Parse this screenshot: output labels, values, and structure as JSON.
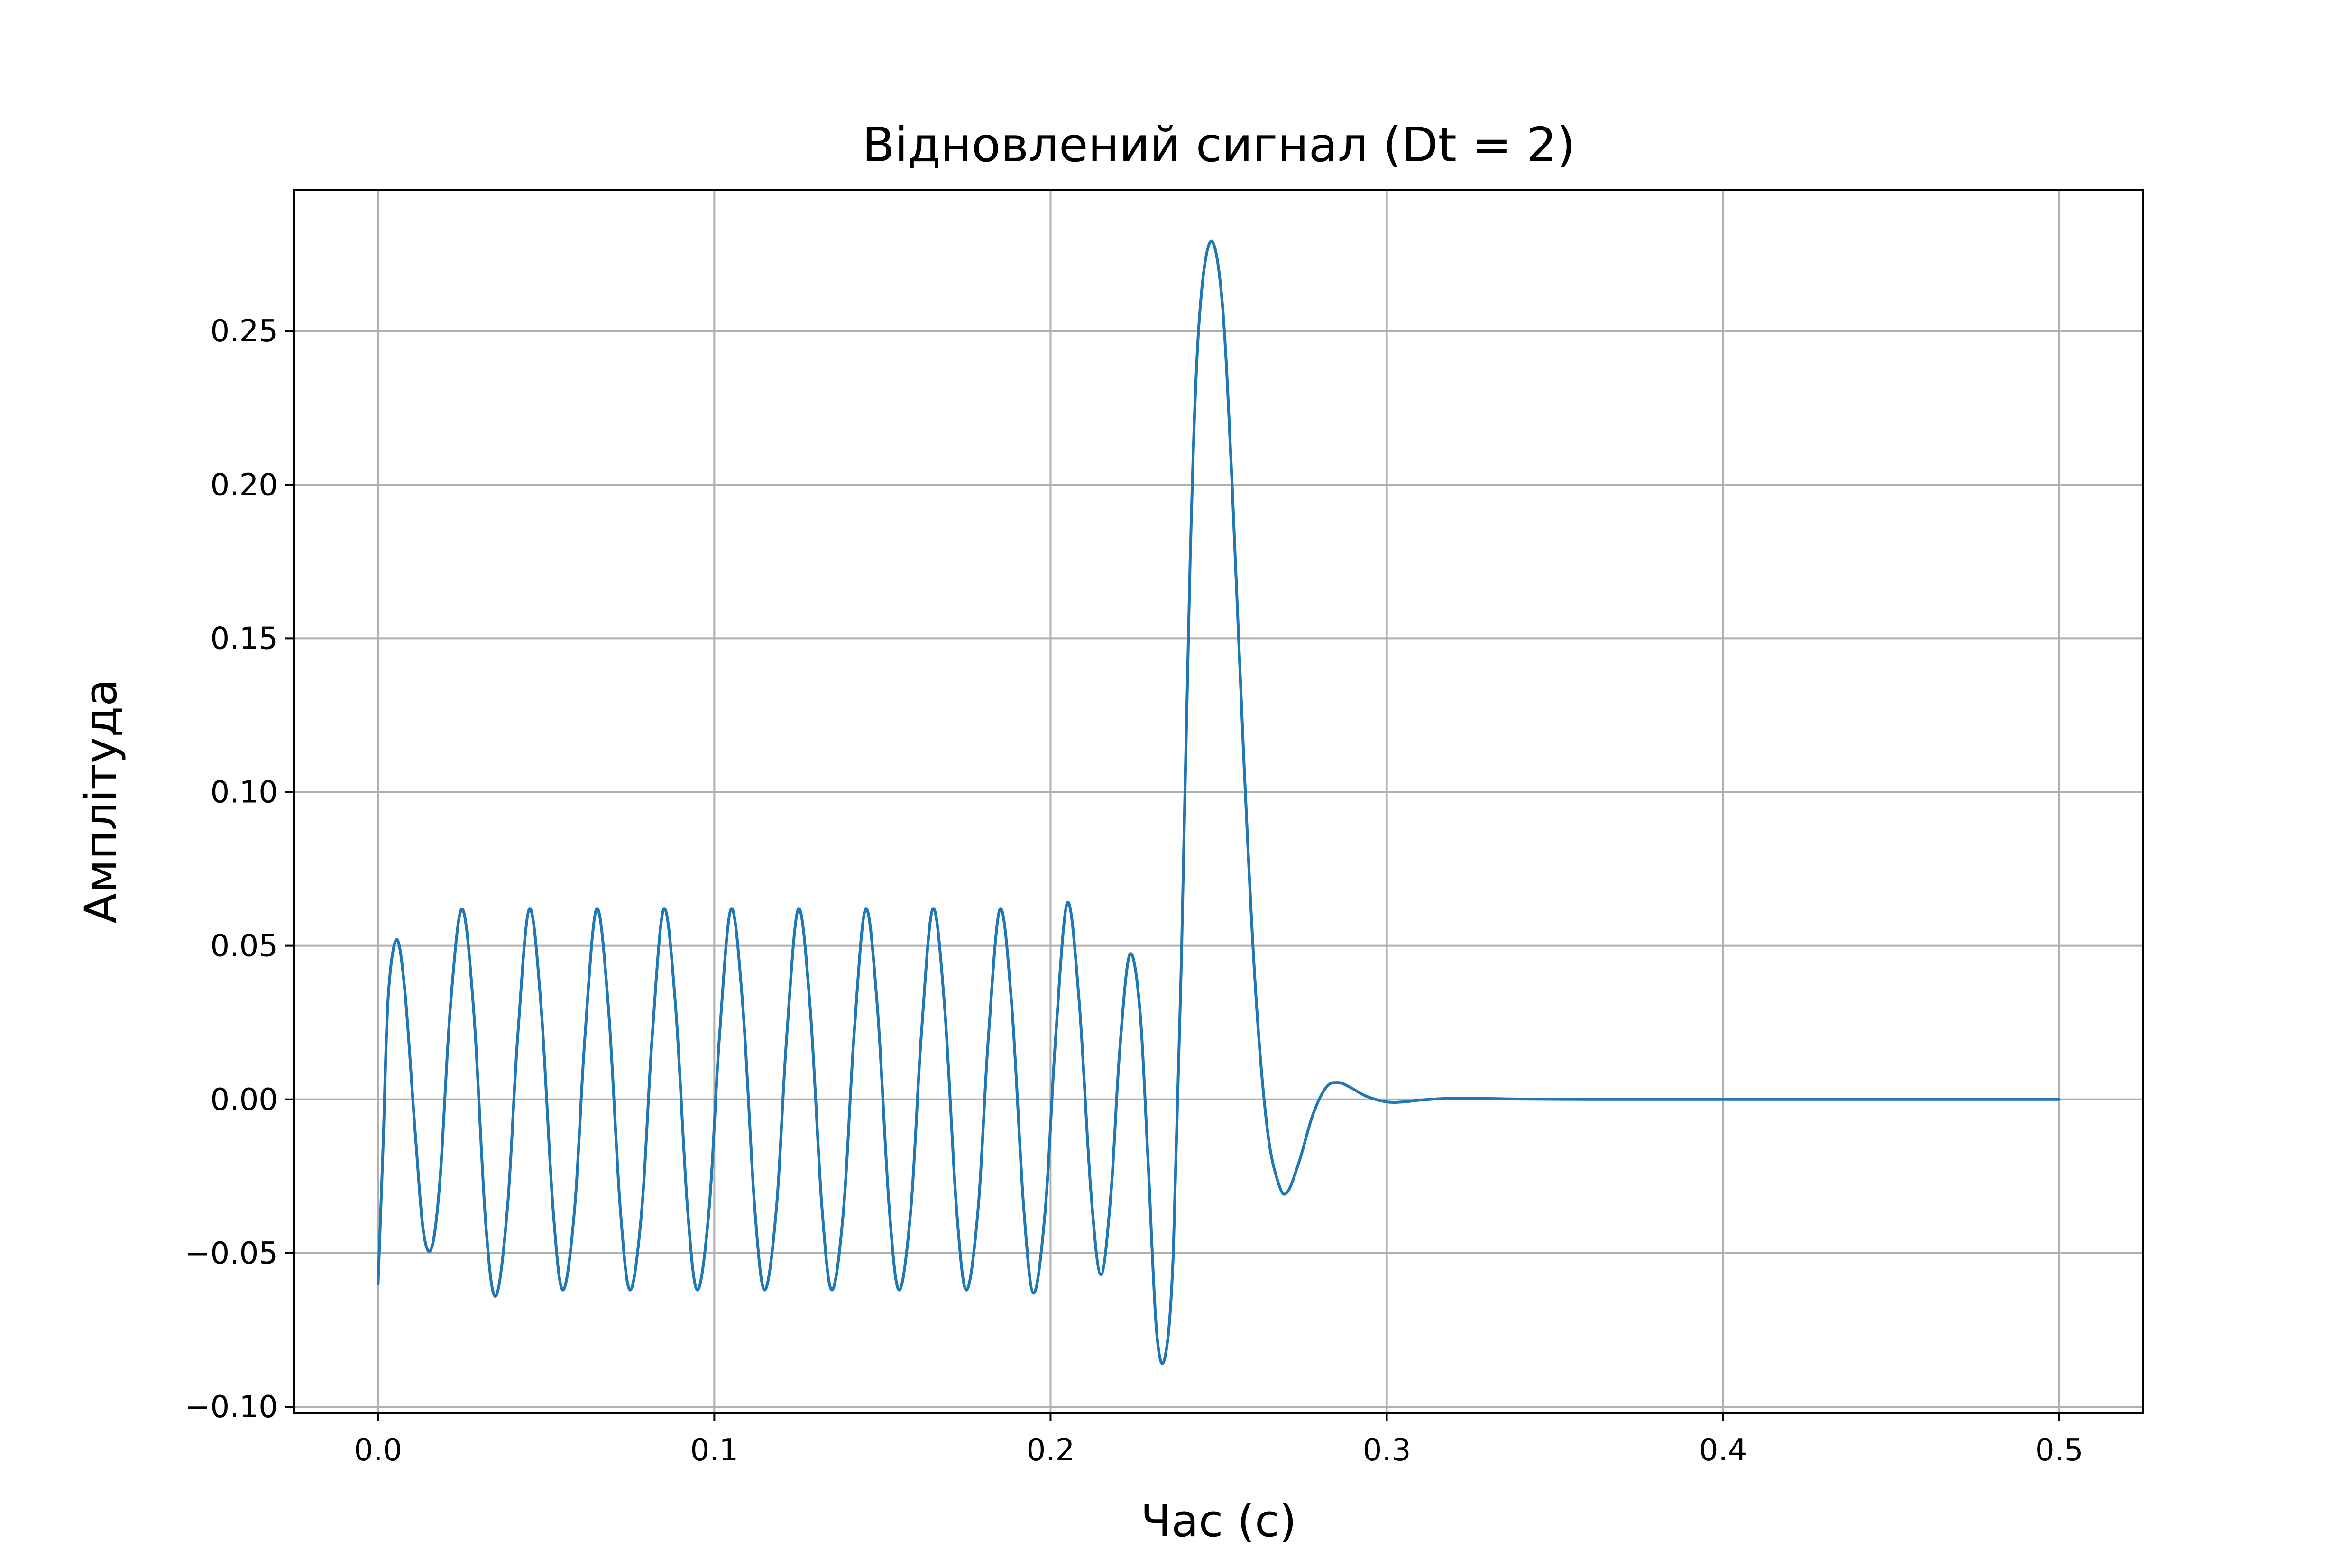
{
  "chart_data": {
    "type": "line",
    "title": "Відновлений сигнал (Dt = 2)",
    "xlabel": "Час (с)",
    "ylabel": "Амплітуда",
    "xlim": [
      -0.025,
      0.525
    ],
    "ylim": [
      -0.102,
      0.296
    ],
    "grid": true,
    "legend": "none",
    "line_color": "#1f77b4",
    "x_ticks": [
      {
        "value": 0.0,
        "label": "0.0"
      },
      {
        "value": 0.1,
        "label": "0.1"
      },
      {
        "value": 0.2,
        "label": "0.2"
      },
      {
        "value": 0.3,
        "label": "0.3"
      },
      {
        "value": 0.4,
        "label": "0.4"
      },
      {
        "value": 0.5,
        "label": "0.5"
      }
    ],
    "y_ticks": [
      {
        "value": -0.1,
        "label": "−0.10"
      },
      {
        "value": -0.05,
        "label": "−0.05"
      },
      {
        "value": 0.0,
        "label": "0.00"
      },
      {
        "value": 0.05,
        "label": "0.05"
      },
      {
        "value": 0.1,
        "label": "0.10"
      },
      {
        "value": 0.15,
        "label": "0.15"
      },
      {
        "value": 0.2,
        "label": "0.20"
      },
      {
        "value": 0.25,
        "label": "0.25"
      }
    ],
    "series": [
      {
        "values": [
          [
            0.0,
            -0.06
          ],
          [
            0.0015,
            -0.015
          ],
          [
            0.003,
            0.033
          ],
          [
            0.0055,
            0.052
          ],
          [
            0.008,
            0.035
          ],
          [
            0.011,
            -0.01
          ],
          [
            0.0135,
            -0.043
          ],
          [
            0.016,
            -0.048
          ],
          [
            0.0185,
            -0.025
          ],
          [
            0.0215,
            0.03
          ],
          [
            0.025,
            0.062
          ],
          [
            0.0285,
            0.028
          ],
          [
            0.032,
            -0.04
          ],
          [
            0.035,
            -0.064
          ],
          [
            0.0385,
            -0.035
          ],
          [
            0.0415,
            0.02
          ],
          [
            0.045,
            0.062
          ],
          [
            0.0485,
            0.03
          ],
          [
            0.052,
            -0.035
          ],
          [
            0.055,
            -0.062
          ],
          [
            0.0585,
            -0.035
          ],
          [
            0.0615,
            0.02
          ],
          [
            0.065,
            0.062
          ],
          [
            0.0685,
            0.03
          ],
          [
            0.072,
            -0.035
          ],
          [
            0.075,
            -0.062
          ],
          [
            0.0785,
            -0.035
          ],
          [
            0.0815,
            0.02
          ],
          [
            0.085,
            0.062
          ],
          [
            0.0885,
            0.03
          ],
          [
            0.092,
            -0.035
          ],
          [
            0.095,
            -0.062
          ],
          [
            0.0985,
            -0.035
          ],
          [
            0.1015,
            0.02
          ],
          [
            0.105,
            0.062
          ],
          [
            0.1085,
            0.03
          ],
          [
            0.112,
            -0.035
          ],
          [
            0.115,
            -0.062
          ],
          [
            0.1185,
            -0.035
          ],
          [
            0.1215,
            0.02
          ],
          [
            0.125,
            0.062
          ],
          [
            0.1285,
            0.03
          ],
          [
            0.132,
            -0.035
          ],
          [
            0.135,
            -0.062
          ],
          [
            0.1385,
            -0.035
          ],
          [
            0.1415,
            0.02
          ],
          [
            0.145,
            0.062
          ],
          [
            0.1485,
            0.03
          ],
          [
            0.152,
            -0.035
          ],
          [
            0.155,
            -0.062
          ],
          [
            0.1585,
            -0.035
          ],
          [
            0.1615,
            0.02
          ],
          [
            0.165,
            0.062
          ],
          [
            0.1685,
            0.03
          ],
          [
            0.172,
            -0.035
          ],
          [
            0.175,
            -0.062
          ],
          [
            0.1785,
            -0.035
          ],
          [
            0.1815,
            0.02
          ],
          [
            0.185,
            0.062
          ],
          [
            0.1885,
            0.03
          ],
          [
            0.192,
            -0.035
          ],
          [
            0.195,
            -0.063
          ],
          [
            0.1985,
            -0.035
          ],
          [
            0.2015,
            0.02
          ],
          [
            0.205,
            0.064
          ],
          [
            0.2085,
            0.032
          ],
          [
            0.212,
            -0.03
          ],
          [
            0.215,
            -0.057
          ],
          [
            0.218,
            -0.03
          ],
          [
            0.2205,
            0.015
          ],
          [
            0.2235,
            0.047
          ],
          [
            0.2265,
            0.03
          ],
          [
            0.229,
            -0.02
          ],
          [
            0.2315,
            -0.075
          ],
          [
            0.234,
            -0.084
          ],
          [
            0.2365,
            -0.05
          ],
          [
            0.239,
            0.05
          ],
          [
            0.2415,
            0.175
          ],
          [
            0.244,
            0.25
          ],
          [
            0.2475,
            0.279
          ],
          [
            0.251,
            0.26
          ],
          [
            0.254,
            0.2
          ],
          [
            0.2575,
            0.11
          ],
          [
            0.261,
            0.035
          ],
          [
            0.2645,
            -0.01
          ],
          [
            0.268,
            -0.028
          ],
          [
            0.2705,
            -0.03
          ],
          [
            0.274,
            -0.02
          ],
          [
            0.278,
            -0.005
          ],
          [
            0.282,
            0.004
          ],
          [
            0.2855,
            0.0055
          ],
          [
            0.289,
            0.004
          ],
          [
            0.294,
            0.001
          ],
          [
            0.3,
            -0.0008
          ],
          [
            0.305,
            -0.0008
          ],
          [
            0.31,
            -0.0002
          ],
          [
            0.32,
            0.0004
          ],
          [
            0.33,
            0.0003
          ],
          [
            0.34,
            0.0001
          ],
          [
            0.36,
            0.0
          ],
          [
            0.4,
            0.0
          ],
          [
            0.45,
            0.0
          ],
          [
            0.5,
            0.0
          ]
        ]
      }
    ]
  }
}
